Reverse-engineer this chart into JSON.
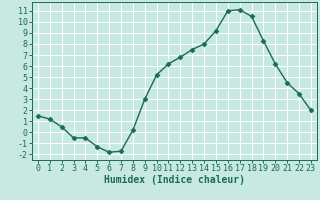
{
  "x": [
    0,
    1,
    2,
    3,
    4,
    5,
    6,
    7,
    8,
    9,
    10,
    11,
    12,
    13,
    14,
    15,
    16,
    17,
    18,
    19,
    20,
    21,
    22,
    23
  ],
  "y": [
    1.5,
    1.2,
    0.5,
    -0.5,
    -0.5,
    -1.3,
    -1.8,
    -1.7,
    0.2,
    3.0,
    5.2,
    6.2,
    6.8,
    7.5,
    8.0,
    9.2,
    11.0,
    11.1,
    10.5,
    8.3,
    6.2,
    4.5,
    3.5,
    2.0
  ],
  "line_color": "#1a6b5a",
  "marker": "D",
  "markersize": 2.5,
  "background_color": "#c8e8e2",
  "grid_color": "#ffffff",
  "xlabel": "Humidex (Indice chaleur)",
  "ylim": [
    -2.5,
    11.8
  ],
  "xlim": [
    -0.5,
    23.5
  ],
  "yticks": [
    -2,
    -1,
    0,
    1,
    2,
    3,
    4,
    5,
    6,
    7,
    8,
    9,
    10,
    11
  ],
  "xticks": [
    0,
    1,
    2,
    3,
    4,
    5,
    6,
    7,
    8,
    9,
    10,
    11,
    12,
    13,
    14,
    15,
    16,
    17,
    18,
    19,
    20,
    21,
    22,
    23
  ],
  "tick_color": "#1a6b5a",
  "label_color": "#1a6b5a",
  "xlabel_fontsize": 7,
  "tick_fontsize": 6,
  "linewidth": 1.0
}
